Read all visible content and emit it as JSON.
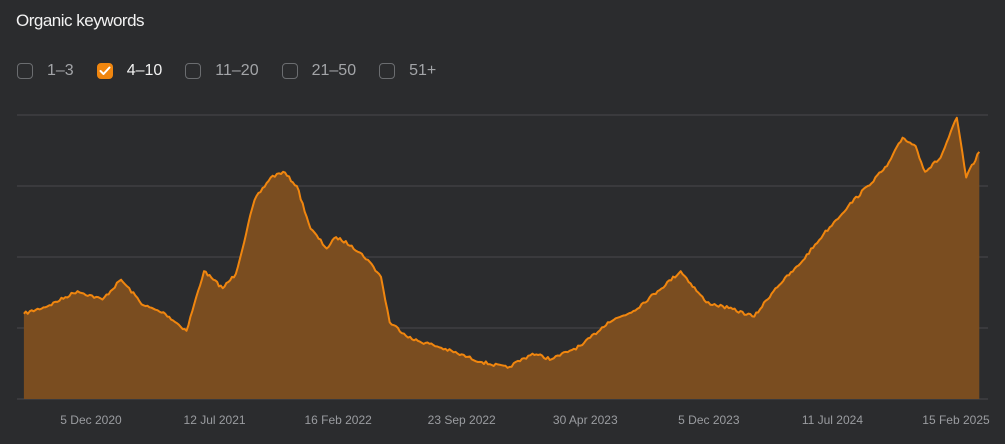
{
  "header": {
    "title": "Organic keywords"
  },
  "filters": [
    {
      "label": "1–3",
      "checked": false
    },
    {
      "label": "4–10",
      "checked": true
    },
    {
      "label": "11–20",
      "checked": false
    },
    {
      "label": "21–50",
      "checked": false
    },
    {
      "label": "51+",
      "checked": false
    }
  ],
  "colors": {
    "background": "#2b2c2e",
    "series_line": "#f0860f",
    "series_fill": "#7a4d20",
    "grid": "#48494c"
  },
  "chart_data": {
    "type": "area",
    "grid": true,
    "y_axis_labels_shown": false,
    "ylim": [
      0,
      100
    ],
    "xlim": [
      "2020-11-24",
      "2025-03-01"
    ],
    "x_ticks": [
      "5 Dec 2020",
      "12 Jul 2021",
      "16 Feb 2022",
      "23 Sep 2022",
      "30 Apr 2023",
      "5 Dec 2023",
      "11 Jul 2024",
      "15 Feb 2025"
    ],
    "series": [
      {
        "x": [
          "2020-12-05",
          "2021-01-15",
          "2021-03-01",
          "2021-04-10",
          "2021-05-10",
          "2021-06-15",
          "2021-07-20",
          "2021-08-23",
          "2021-09-20",
          "2021-10-05",
          "2021-10-20",
          "2021-11-10",
          "2021-12-10",
          "2022-01-05",
          "2022-01-25",
          "2022-02-16",
          "2022-03-10",
          "2022-04-05",
          "2022-04-20",
          "2022-05-15",
          "2022-06-10",
          "2022-07-01",
          "2022-07-15",
          "2022-08-20",
          "2022-09-23",
          "2022-11-01",
          "2022-12-10",
          "2023-01-20",
          "2023-03-01",
          "2023-04-01",
          "2023-04-30",
          "2023-05-20",
          "2023-06-30",
          "2023-08-10",
          "2023-09-18",
          "2023-10-25",
          "2023-12-05",
          "2024-01-10",
          "2024-02-20",
          "2024-03-25",
          "2024-05-01",
          "2024-06-10",
          "2024-06-30",
          "2024-07-20",
          "2024-08-20",
          "2024-09-20",
          "2024-10-15",
          "2024-11-05",
          "2024-11-20",
          "2024-12-15",
          "2025-01-10",
          "2025-01-25",
          "2025-02-15"
        ],
        "y": [
          30,
          33,
          38,
          35,
          42,
          33,
          30,
          24,
          45,
          42,
          39,
          44,
          70,
          78,
          80,
          75,
          60,
          53,
          57,
          54,
          49,
          43,
          27,
          21,
          19,
          16,
          13,
          11,
          16,
          14,
          17,
          19,
          27,
          31,
          38,
          45,
          34,
          32,
          29,
          39,
          47,
          58,
          63,
          68,
          75,
          82,
          92,
          89,
          80,
          85,
          99,
          78,
          87
        ]
      }
    ]
  }
}
